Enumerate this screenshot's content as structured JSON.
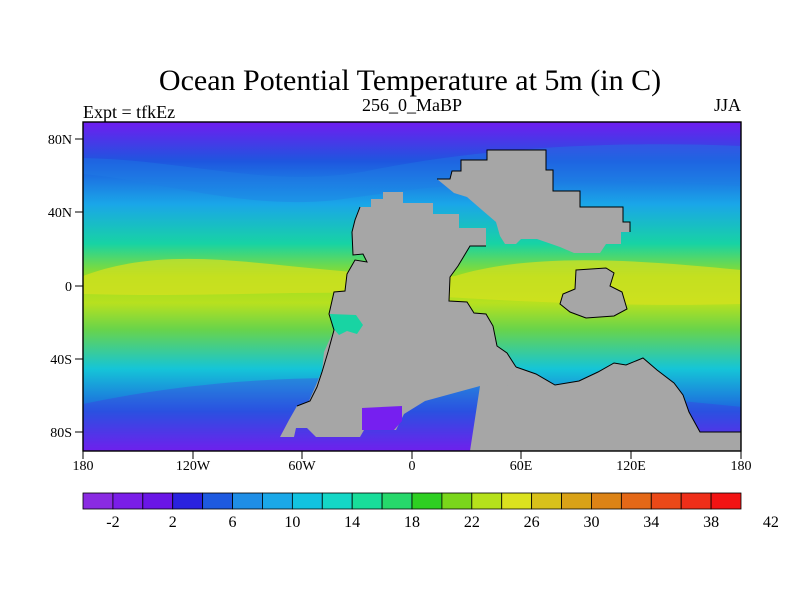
{
  "title": "Ocean Potential Temperature at 5m (in C)",
  "left_label": "Expt = tfkEz",
  "center_label": "256_0_MaBP",
  "right_label": "JJA",
  "map_data": {
    "projection": "cylindrical-equidistant",
    "x_ticks": [
      "180",
      "120W",
      "60W",
      "0",
      "60E",
      "120E",
      "180"
    ],
    "y_ticks": [
      "80N",
      "40N",
      "0",
      "40S",
      "80S"
    ],
    "land_color": "#a6a6a6",
    "warm_band_center": "0",
    "cold_poles": [
      "80N",
      "80S"
    ]
  },
  "colorbar": {
    "labels": [
      "-2",
      "2",
      "6",
      "10",
      "14",
      "18",
      "22",
      "26",
      "30",
      "34",
      "38",
      "42"
    ],
    "colors": [
      "#8a2be2",
      "#7a1ee8",
      "#6a16e6",
      "#2a22df",
      "#1e5ae0",
      "#1f8ee6",
      "#1aa8e8",
      "#12c3e0",
      "#14d7c6",
      "#18dd9a",
      "#26d86b",
      "#2ecf22",
      "#7ad61b",
      "#b5e11b",
      "#dbe21f",
      "#d8c11a",
      "#d9a217",
      "#dc8316",
      "#e46817",
      "#eb4918",
      "#ee2e19",
      "#f21313"
    ]
  }
}
